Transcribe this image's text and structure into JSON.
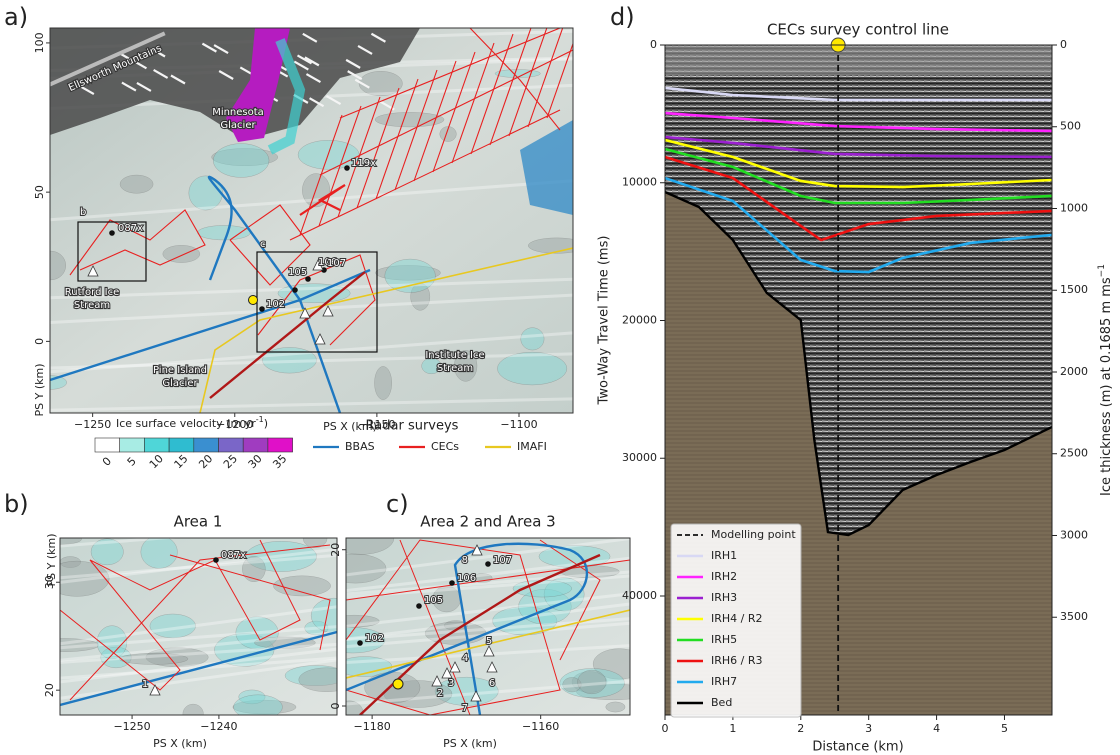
{
  "panel_a": {
    "label": "a)",
    "xlim": [
      -1265,
      -1081
    ],
    "ylim": [
      -24,
      105
    ],
    "xticks": [
      {
        "value": -1250,
        "label": "−1250"
      },
      {
        "value": -1200,
        "label": "−1200"
      },
      {
        "value": -1150,
        "label": "−1150"
      },
      {
        "value": -1100,
        "label": "−1100"
      }
    ],
    "yticks": [
      0,
      50,
      100
    ],
    "xlabel": "PS X (km)",
    "ylabel": "PS Y (km)",
    "place_labels": [
      [
        "Ellsworth Mountains"
      ],
      [
        "Minnesota",
        "Glacier"
      ],
      [
        "Rutford Ice",
        "Stream"
      ],
      [
        "Pine Island",
        "Glacier"
      ],
      [
        "Institute Ice",
        "Stream"
      ]
    ],
    "box_labels": [
      "b",
      "c"
    ],
    "point_labels": [
      "119x",
      "087x",
      "102",
      "105",
      "106",
      "107"
    ],
    "colorbar": {
      "title": "Ice surface velocity (m yr",
      "title_sup": "-1",
      "title_end": ")",
      "ticks": [
        0,
        5,
        10,
        15,
        20,
        25,
        30,
        35
      ],
      "colors": [
        "#ffffff",
        "#a8ece4",
        "#4fd6d8",
        "#2fbcd0",
        "#3a8fd0",
        "#7a66c8",
        "#a03cc0",
        "#e010c8"
      ]
    },
    "legend": {
      "title": "Radar surveys",
      "items": [
        {
          "name": "BBAS",
          "color": "#1f78c0"
        },
        {
          "name": "CECs",
          "color": "#e82020"
        },
        {
          "name": "IMAFI",
          "color": "#e8c820"
        }
      ]
    }
  },
  "panel_b": {
    "label": "b)",
    "title": "Area 1",
    "xlim": [
      -1258.3,
      -1226.4
    ],
    "ylim": [
      17.7,
      34.1
    ],
    "xticks": [
      {
        "value": -1250,
        "label": "−1250"
      },
      {
        "value": -1240,
        "label": "−1240"
      }
    ],
    "yticks": [
      20,
      30
    ],
    "xlabel": "PS X (km)",
    "ylabel": "PS Y (km)",
    "point_labels": [
      "087x",
      "1"
    ]
  },
  "panel_c": {
    "label": "c)",
    "title": "Area 2 and Area 3",
    "xlim": [
      -1183.1,
      -1149.4
    ],
    "ylim": [
      -1.15,
      21.5
    ],
    "xticks": [
      {
        "value": -1180,
        "label": "−1180"
      },
      {
        "value": -1160,
        "label": "−1160"
      }
    ],
    "yticks": [
      0,
      20
    ],
    "xlabel": "PS X (km)",
    "point_labels": [
      "102",
      "105",
      "106",
      "107",
      "8",
      "4",
      "3",
      "2",
      "5",
      "6",
      "7"
    ]
  },
  "panel_d": {
    "label": "d)",
    "title": "CECs survey control line",
    "xlabel": "Distance (km)",
    "ylabel": "Two-Way Travel Time (ms)",
    "y2label": {
      "text": "Ice thickness (m) at 0.1685 m ms",
      "sup": "−1"
    },
    "xlim": [
      0,
      5.7
    ],
    "ylim": [
      0,
      48640
    ],
    "y2lim": [
      0,
      4098
    ],
    "xticks": [
      0,
      1,
      2,
      3,
      4,
      5
    ],
    "yticks": [
      0,
      10000,
      20000,
      30000,
      40000
    ],
    "y2ticks": [
      0,
      500,
      1000,
      1500,
      2000,
      2500,
      3000,
      3500
    ],
    "modelling_point": {
      "name": "Modelling point",
      "x": 2.55
    },
    "series": [
      {
        "name": "IRH1",
        "color": "#d8d8f4",
        "x": [
          0,
          1,
          2.5,
          4,
          5.7
        ],
        "values": [
          3120,
          3630,
          3990,
          3990,
          3990
        ]
      },
      {
        "name": "IRH2",
        "color": "#ff22ff",
        "x": [
          0,
          1,
          2.5,
          4,
          5.7
        ],
        "values": [
          4940,
          5300,
          5880,
          6100,
          6240
        ]
      },
      {
        "name": "IRH3",
        "color": "#9b20d0",
        "x": [
          0,
          1,
          2.5,
          4,
          5.7
        ],
        "values": [
          6680,
          7110,
          7910,
          8060,
          8130
        ]
      },
      {
        "name": "IRH4 / R2",
        "color": "#ffff00",
        "x": [
          0,
          1,
          2,
          2.5,
          3.5,
          4.5,
          5.7
        ],
        "values": [
          6900,
          8130,
          9870,
          10240,
          10310,
          10090,
          9800
        ]
      },
      {
        "name": "IRH5",
        "color": "#22dd22",
        "x": [
          0,
          1,
          2,
          2.5,
          3.5,
          4.5,
          5.7
        ],
        "values": [
          7550,
          8860,
          10960,
          11470,
          11470,
          11250,
          10960
        ]
      },
      {
        "name": "IRH6 / R3",
        "color": "#ee1111",
        "x": [
          0,
          1,
          2,
          2.3,
          3,
          4,
          5.7
        ],
        "values": [
          8130,
          9660,
          13140,
          14160,
          13000,
          12410,
          12050
        ]
      },
      {
        "name": "IRH7",
        "color": "#22aaee",
        "x": [
          0,
          1,
          2,
          2.5,
          3,
          3.5,
          4.5,
          5.7
        ],
        "values": [
          9660,
          11330,
          15610,
          16410,
          16480,
          15460,
          14370,
          13790
        ]
      },
      {
        "name": "Bed",
        "color": "#000000",
        "x": [
          0,
          0.5,
          1,
          1.5,
          2,
          2.2,
          2.4,
          2.7,
          3,
          3.5,
          4,
          4.5,
          5,
          5.7
        ],
        "values": [
          10670,
          11760,
          14160,
          18000,
          19970,
          28680,
          35360,
          35570,
          34850,
          32310,
          31220,
          30270,
          29400,
          27730
        ]
      }
    ]
  }
}
